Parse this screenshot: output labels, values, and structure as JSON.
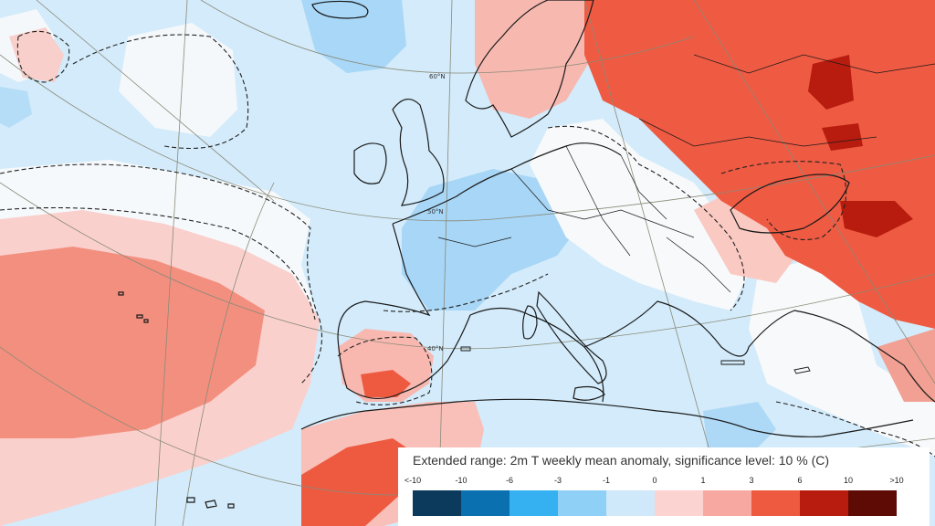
{
  "map": {
    "latitude_labels": [
      "60°N",
      "50°N",
      "40°N"
    ],
    "colors": {
      "land_outline": "#1a1a1a",
      "graticule": "#7a7a6a",
      "significance_contour": "#222222"
    }
  },
  "legend": {
    "title": "Extended range: 2m T weekly mean anomaly, significance level: 10 % (C)",
    "tick_labels": [
      "<-10",
      "-10",
      "-6",
      "-3",
      "-1",
      "0",
      "1",
      "3",
      "6",
      "10",
      ">10"
    ],
    "swatch_colors": [
      "#0b3a5c",
      "#0b70b0",
      "#35b0f0",
      "#8fd0f6",
      "#cfe9fb",
      "#fbd3d0",
      "#f7a9a1",
      "#ee5a40",
      "#b81c0e",
      "#5e0b05"
    ]
  }
}
